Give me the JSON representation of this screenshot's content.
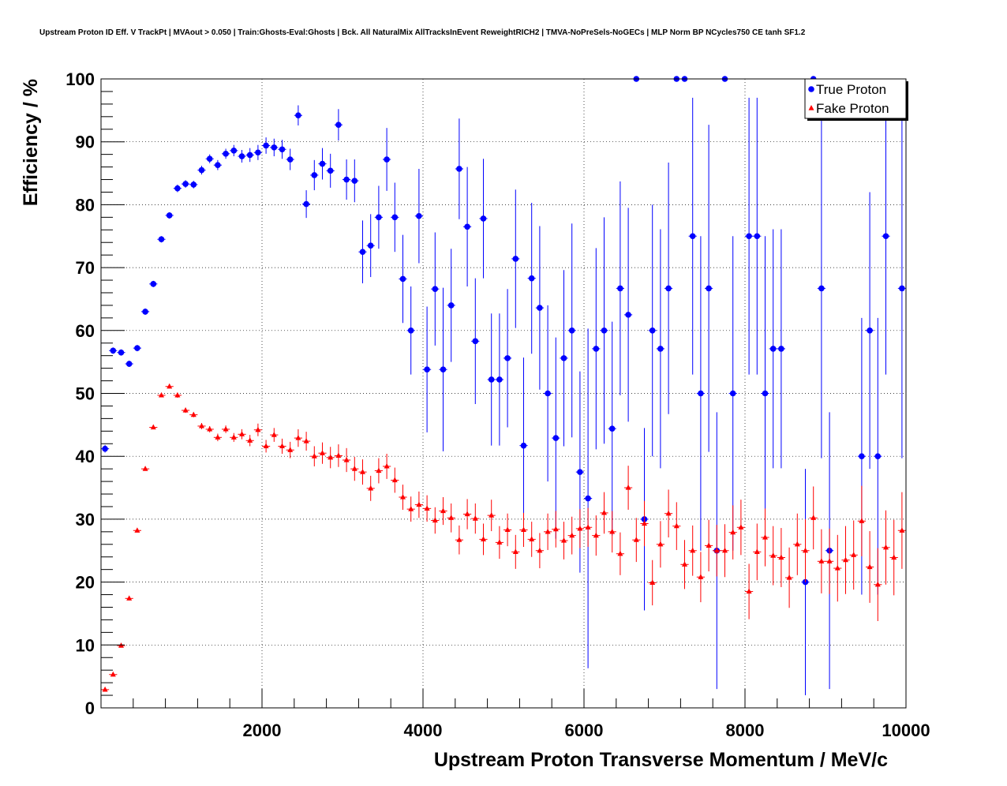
{
  "chart_data": {
    "type": "scatter",
    "title": "Upstream Proton ID Eff. V TrackPt | MVAout > 0.050 | Train:Ghosts-Eval:Ghosts | Bck. All NaturalMix AllTracksInEvent ReweightRICH2 | TMVA-NoPreSels-NoGECs | MLP Norm BP NCycles750 CE tanh SF1.2",
    "xlabel": "Upstream Proton Transverse Momentum / MeV/c",
    "ylabel": "Efficiency / %",
    "xlim": [
      0,
      10000
    ],
    "ylim": [
      0,
      100
    ],
    "x_ticks": [
      2000,
      4000,
      6000,
      8000,
      10000
    ],
    "y_ticks": [
      0,
      10,
      20,
      30,
      40,
      50,
      60,
      70,
      80,
      90,
      100
    ],
    "grid": true,
    "legend_position": "top-right",
    "x_bin_half_width": 50,
    "series": [
      {
        "name": "True Proton",
        "color": "#0000ff",
        "marker": "circle",
        "points": [
          [
            50,
            41.2,
            0.6
          ],
          [
            150,
            56.8,
            0.5
          ],
          [
            250,
            56.5,
            0.5
          ],
          [
            350,
            54.7,
            0.5
          ],
          [
            450,
            57.2,
            0.5
          ],
          [
            550,
            63.0,
            0.5
          ],
          [
            650,
            67.4,
            0.5
          ],
          [
            750,
            74.5,
            0.5
          ],
          [
            850,
            78.3,
            0.5
          ],
          [
            950,
            82.6,
            0.6
          ],
          [
            1050,
            83.3,
            0.6
          ],
          [
            1150,
            83.2,
            0.6
          ],
          [
            1250,
            85.5,
            0.7
          ],
          [
            1350,
            87.3,
            0.7
          ],
          [
            1450,
            86.3,
            0.8
          ],
          [
            1550,
            88.1,
            0.8
          ],
          [
            1650,
            88.6,
            0.9
          ],
          [
            1750,
            87.7,
            1.0
          ],
          [
            1850,
            87.9,
            1.1
          ],
          [
            1950,
            88.3,
            1.2
          ],
          [
            2050,
            89.4,
            1.3
          ],
          [
            2150,
            89.1,
            1.4
          ],
          [
            2250,
            88.8,
            1.5
          ],
          [
            2350,
            87.2,
            1.7
          ],
          [
            2450,
            94.2,
            1.6
          ],
          [
            2550,
            80.1,
            2.2
          ],
          [
            2650,
            84.7,
            2.4
          ],
          [
            2750,
            86.5,
            2.5
          ],
          [
            2850,
            85.4,
            2.7
          ],
          [
            2950,
            92.7,
            2.5
          ],
          [
            3050,
            84.0,
            3.2
          ],
          [
            3150,
            83.8,
            3.4
          ],
          [
            3250,
            72.5,
            5.0
          ],
          [
            3350,
            73.5,
            5.0
          ],
          [
            3450,
            78.0,
            5.0
          ],
          [
            3550,
            87.2,
            5.0
          ],
          [
            3650,
            78.0,
            5.5
          ],
          [
            3750,
            68.2,
            7.0
          ],
          [
            3850,
            60.0,
            7.0
          ],
          [
            3950,
            78.2,
            7.5
          ],
          [
            4050,
            53.8,
            10.0
          ],
          [
            4150,
            66.6,
            9.0
          ],
          [
            4250,
            53.8,
            13.0
          ],
          [
            4350,
            64.0,
            9.0
          ],
          [
            4450,
            85.7,
            8.0
          ],
          [
            4550,
            76.5,
            9.5
          ],
          [
            4650,
            58.3,
            10.0
          ],
          [
            4750,
            77.8,
            9.5
          ],
          [
            4850,
            52.2,
            10.5
          ],
          [
            4950,
            52.2,
            10.5
          ],
          [
            5050,
            55.6,
            11.0
          ],
          [
            5150,
            71.4,
            11.0
          ],
          [
            5250,
            41.7,
            14.0
          ],
          [
            5350,
            68.3,
            12.0
          ],
          [
            5450,
            63.6,
            13.0
          ],
          [
            5550,
            50.0,
            14.0
          ],
          [
            5650,
            42.9,
            16.0
          ],
          [
            5750,
            55.6,
            14.0
          ],
          [
            5850,
            60.0,
            17.0
          ],
          [
            5950,
            37.5,
            16.0
          ],
          [
            6050,
            33.3,
            27.0
          ],
          [
            6150,
            57.1,
            16.0
          ],
          [
            6250,
            60.0,
            18.0
          ],
          [
            6350,
            44.4,
            17.0
          ],
          [
            6450,
            66.7,
            17.0
          ],
          [
            6550,
            62.5,
            17.0
          ],
          [
            6650,
            100.0,
            0.0
          ],
          [
            6750,
            30.0,
            14.5
          ],
          [
            6850,
            60.0,
            20.0
          ],
          [
            6950,
            57.1,
            19.0
          ],
          [
            7050,
            66.7,
            20.0
          ],
          [
            7150,
            100.0,
            0.0
          ],
          [
            7250,
            100.0,
            0.0
          ],
          [
            7350,
            75.0,
            22.0
          ],
          [
            7450,
            50.0,
            25.0
          ],
          [
            7550,
            66.7,
            26.0
          ],
          [
            7650,
            25.0,
            22.0
          ],
          [
            7750,
            100.0,
            0.0
          ],
          [
            7850,
            50.0,
            25.0
          ],
          [
            8050,
            75.0,
            22.0
          ],
          [
            8150,
            75.0,
            22.0
          ],
          [
            8250,
            50.0,
            25.0
          ],
          [
            8350,
            57.1,
            19.0
          ],
          [
            8450,
            57.1,
            19.0
          ],
          [
            8750,
            20.0,
            18.0
          ],
          [
            8850,
            100.0,
            0.0
          ],
          [
            8950,
            66.7,
            27.0
          ],
          [
            9050,
            25.0,
            22.0
          ],
          [
            9450,
            40.0,
            22.0
          ],
          [
            9550,
            60.0,
            22.0
          ],
          [
            9650,
            40.0,
            22.0
          ],
          [
            9750,
            75.0,
            22.0
          ],
          [
            9950,
            66.7,
            27.0
          ]
        ]
      },
      {
        "name": "Fake Proton",
        "color": "#ff0000",
        "marker": "triangle",
        "points": [
          [
            50,
            2.9,
            0.3
          ],
          [
            150,
            5.3,
            0.3
          ],
          [
            250,
            9.9,
            0.3
          ],
          [
            350,
            17.4,
            0.3
          ],
          [
            450,
            28.2,
            0.3
          ],
          [
            550,
            38.0,
            0.3
          ],
          [
            650,
            44.6,
            0.3
          ],
          [
            750,
            49.7,
            0.3
          ],
          [
            850,
            51.1,
            0.3
          ],
          [
            950,
            49.7,
            0.4
          ],
          [
            1050,
            47.3,
            0.4
          ],
          [
            1150,
            46.6,
            0.4
          ],
          [
            1250,
            44.8,
            0.5
          ],
          [
            1350,
            44.3,
            0.5
          ],
          [
            1450,
            43.0,
            0.6
          ],
          [
            1550,
            44.3,
            0.6
          ],
          [
            1650,
            43.0,
            0.7
          ],
          [
            1750,
            43.5,
            0.8
          ],
          [
            1850,
            42.5,
            0.9
          ],
          [
            1950,
            44.2,
            1.0
          ],
          [
            2050,
            41.6,
            1.0
          ],
          [
            2150,
            43.4,
            1.1
          ],
          [
            2250,
            41.6,
            1.2
          ],
          [
            2350,
            41.0,
            1.3
          ],
          [
            2450,
            42.9,
            1.4
          ],
          [
            2550,
            42.4,
            1.5
          ],
          [
            2650,
            40.0,
            1.6
          ],
          [
            2750,
            40.5,
            1.7
          ],
          [
            2850,
            39.8,
            1.7
          ],
          [
            2950,
            40.1,
            1.8
          ],
          [
            3050,
            39.4,
            1.9
          ],
          [
            3150,
            38.0,
            1.9
          ],
          [
            3250,
            37.5,
            2.0
          ],
          [
            3350,
            34.9,
            2.0
          ],
          [
            3450,
            37.7,
            2.0
          ],
          [
            3550,
            38.4,
            2.0
          ],
          [
            3650,
            36.2,
            2.0
          ],
          [
            3750,
            33.5,
            2.0
          ],
          [
            3850,
            31.6,
            2.0
          ],
          [
            3950,
            32.3,
            2.1
          ],
          [
            4050,
            31.7,
            2.1
          ],
          [
            4150,
            29.8,
            2.1
          ],
          [
            4250,
            31.3,
            2.2
          ],
          [
            4350,
            30.2,
            2.3
          ],
          [
            4450,
            26.7,
            2.3
          ],
          [
            4550,
            30.8,
            2.4
          ],
          [
            4650,
            30.1,
            2.4
          ],
          [
            4750,
            26.8,
            2.5
          ],
          [
            4850,
            30.6,
            2.5
          ],
          [
            4950,
            26.3,
            2.6
          ],
          [
            5050,
            28.3,
            2.6
          ],
          [
            5150,
            24.8,
            2.7
          ],
          [
            5250,
            28.3,
            2.7
          ],
          [
            5350,
            26.8,
            2.8
          ],
          [
            5450,
            25.0,
            2.8
          ],
          [
            5550,
            28.0,
            2.9
          ],
          [
            5650,
            28.4,
            2.9
          ],
          [
            5750,
            26.6,
            3.0
          ],
          [
            5850,
            27.4,
            3.0
          ],
          [
            5950,
            28.5,
            3.1
          ],
          [
            6050,
            28.7,
            3.1
          ],
          [
            6150,
            27.4,
            3.2
          ],
          [
            6250,
            31.0,
            3.3
          ],
          [
            6350,
            28.0,
            3.3
          ],
          [
            6450,
            24.5,
            3.4
          ],
          [
            6550,
            35.0,
            3.5
          ],
          [
            6650,
            26.7,
            3.5
          ],
          [
            6750,
            29.3,
            3.6
          ],
          [
            6850,
            19.9,
            3.6
          ],
          [
            6950,
            26.0,
            3.7
          ],
          [
            7050,
            30.9,
            3.8
          ],
          [
            7150,
            28.9,
            3.8
          ],
          [
            7250,
            22.8,
            3.9
          ],
          [
            7350,
            25.0,
            4.0
          ],
          [
            7450,
            20.8,
            4.0
          ],
          [
            7550,
            25.8,
            4.1
          ],
          [
            7650,
            25.0,
            4.1
          ],
          [
            7750,
            25.0,
            4.2
          ],
          [
            7850,
            27.9,
            4.3
          ],
          [
            7950,
            28.7,
            4.4
          ],
          [
            8050,
            18.5,
            4.4
          ],
          [
            8150,
            24.8,
            4.5
          ],
          [
            8250,
            27.1,
            4.6
          ],
          [
            8350,
            24.2,
            4.7
          ],
          [
            8450,
            23.9,
            4.7
          ],
          [
            8550,
            20.7,
            4.8
          ],
          [
            8650,
            26.0,
            4.9
          ],
          [
            8750,
            25.0,
            5.0
          ],
          [
            8850,
            30.2,
            5.0
          ],
          [
            8950,
            23.3,
            5.1
          ],
          [
            9050,
            23.3,
            5.2
          ],
          [
            9150,
            22.2,
            5.3
          ],
          [
            9250,
            23.5,
            5.4
          ],
          [
            9350,
            24.3,
            5.5
          ],
          [
            9450,
            29.7,
            5.6
          ],
          [
            9550,
            22.4,
            5.7
          ],
          [
            9650,
            19.6,
            5.8
          ],
          [
            9750,
            25.5,
            5.9
          ],
          [
            9850,
            23.9,
            6.0
          ],
          [
            9950,
            28.2,
            6.1
          ]
        ]
      }
    ]
  }
}
